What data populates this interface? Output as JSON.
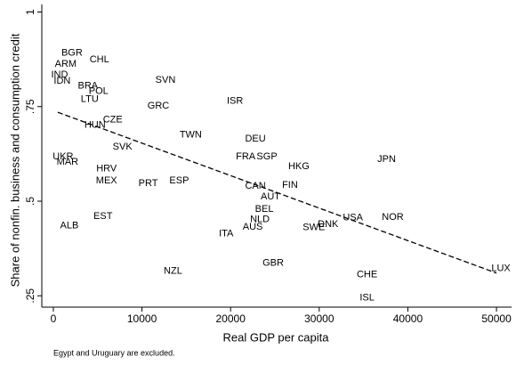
{
  "chart_data": {
    "type": "scatter",
    "x_label": "Real GDP per capita",
    "y_label": "Share of nonfin. business and consumption credit",
    "note": "Egypt and Uruguary are excluded.",
    "labels": [
      "BGR",
      "CHL",
      "ARM",
      "IND",
      "IDN",
      "BRA",
      "POL",
      "LTU",
      "SVN",
      "GRC",
      "ISR",
      "CZE",
      "HUN",
      "TWN",
      "DEU",
      "SVK",
      "UKR",
      "MAR",
      "FRA",
      "SGP",
      "HKG",
      "JPN",
      "HRV",
      "MEX",
      "PRT",
      "ESP",
      "CAN",
      "FIN",
      "AUT",
      "BEL",
      "NLD",
      "AUS",
      "ITA",
      "EST",
      "ALB",
      "USA",
      "NOR",
      "DNK",
      "SWE",
      "GBR",
      "NZL",
      "CHE",
      "LUX",
      "ISL"
    ],
    "x": [
      2100,
      5200,
      1400,
      700,
      1000,
      3900,
      5100,
      4100,
      12650,
      11850,
      20500,
      6700,
      4700,
      15500,
      22800,
      7800,
      1100,
      1600,
      21700,
      24100,
      27700,
      37600,
      6000,
      6000,
      10700,
      14200,
      22800,
      26700,
      24500,
      23800,
      23300,
      22500,
      19500,
      5600,
      1800,
      33800,
      38300,
      31000,
      29400,
      24800,
      13500,
      35400,
      50500,
      35400
    ],
    "y": [
      0.892,
      0.874,
      0.862,
      0.834,
      0.818,
      0.804,
      0.79,
      0.769,
      0.82,
      0.752,
      0.764,
      0.715,
      0.701,
      0.675,
      0.664,
      0.643,
      0.617,
      0.603,
      0.617,
      0.617,
      0.591,
      0.61,
      0.586,
      0.554,
      0.547,
      0.554,
      0.54,
      0.542,
      0.512,
      0.479,
      0.451,
      0.432,
      0.414,
      0.46,
      0.435,
      0.456,
      0.458,
      0.439,
      0.43,
      0.336,
      0.315,
      0.306,
      0.322,
      0.245
    ],
    "fit_line": {
      "x": [
        500,
        50000
      ],
      "y": [
        0.735,
        0.31
      ]
    },
    "xlim": [
      -1300,
      51700
    ],
    "ylim": [
      0.22,
      1.02
    ],
    "xticks": [
      0,
      10000,
      20000,
      30000,
      40000,
      50000
    ],
    "yticks": [
      {
        "value": 0.25,
        "label": ".25"
      },
      {
        "value": 0.5,
        "label": ".5"
      },
      {
        "value": 0.75,
        "label": ".75"
      },
      1
    ]
  }
}
